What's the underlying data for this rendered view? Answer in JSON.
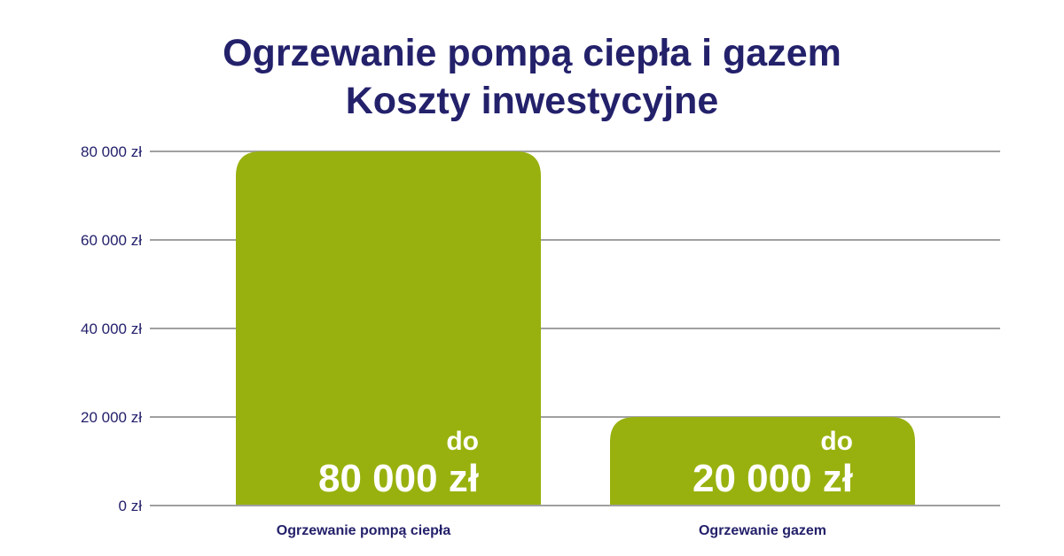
{
  "title_line1": "Ogrzewanie pompą ciepła i gazem",
  "title_line2": "Koszty inwestycyjne",
  "chart_data": {
    "type": "bar",
    "title": "Ogrzewanie pompą ciepła i gazem Koszty inwestycyjne",
    "categories": [
      "Ogrzewanie pompą ciepła",
      "Ogrzewanie gazem"
    ],
    "values": [
      80000,
      20000
    ],
    "ylim": [
      0,
      80000
    ],
    "yticks": [
      0,
      20000,
      40000,
      60000,
      80000
    ],
    "ytick_labels": [
      "0 zł",
      "20 000 zł",
      "40 000 zł",
      "60 000 zł",
      "80 000 zł"
    ],
    "data_labels": [
      {
        "prefix": "do",
        "value": "80 000 zł"
      },
      {
        "prefix": "do",
        "value": "20 000 zł"
      }
    ],
    "grid": true,
    "colors": {
      "bar": "#99b10e",
      "text": "#24216b",
      "grid": "#a0a0a0"
    }
  }
}
